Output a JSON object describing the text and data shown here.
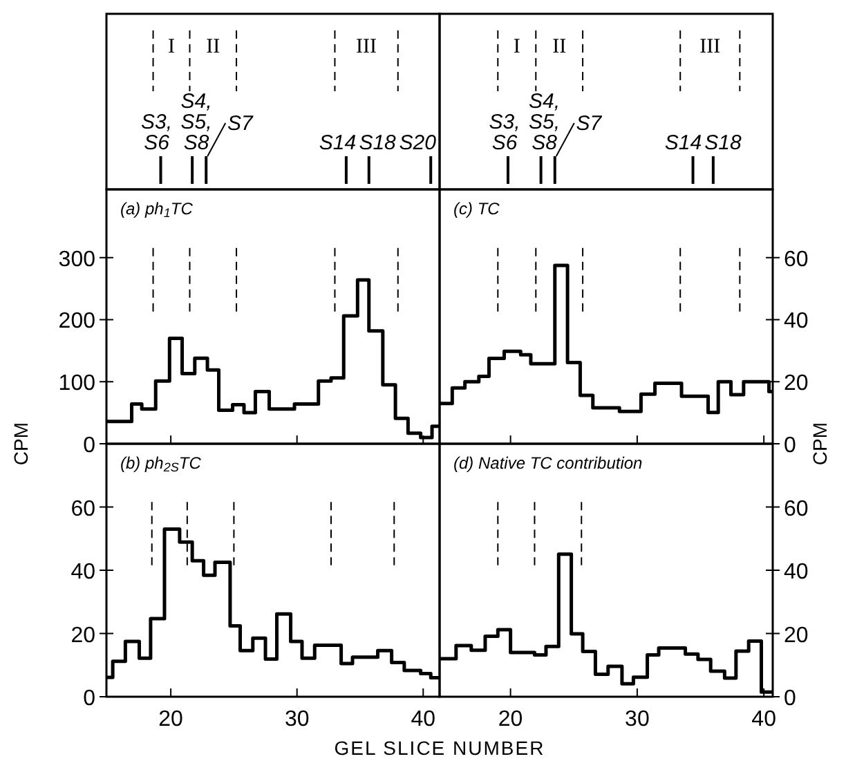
{
  "chart_data": [
    {
      "type": "step",
      "title": "(a) ph$_{1}$TC",
      "xlim": [
        14.9,
        41.3
      ],
      "xticks": [
        20,
        30,
        40
      ],
      "ylim": [
        0,
        410
      ],
      "yticks": [
        0,
        100,
        200,
        300
      ],
      "tick_labels": "y",
      "series": [
        {
          "color": "#000000",
          "x": [
            14.9,
            16.9,
            17.7,
            18.8,
            19.9,
            20.9,
            21.9,
            22.9,
            23.8,
            24.9,
            25.8,
            26.7,
            27.8,
            29.8,
            31.7,
            32.7,
            33.7,
            34.8,
            35.7,
            36.8,
            37.8,
            38.8,
            39.8,
            40.7,
            41.3
          ],
          "values": [
            36,
            64,
            56,
            101,
            170,
            113,
            138,
            119,
            54,
            63,
            50,
            84,
            56,
            64,
            101,
            106,
            206,
            264,
            182,
            95,
            41,
            17,
            10,
            28,
            28
          ]
        }
      ],
      "ref_lines": [
        {
          "axis": "x",
          "value": 18.6,
          "line_style": "dashed"
        },
        {
          "axis": "x",
          "value": 21.5,
          "line_style": "dashed"
        },
        {
          "axis": "x",
          "value": 25.2,
          "line_style": "dashed"
        },
        {
          "axis": "x",
          "value": 33.0,
          "line_style": "dashed"
        },
        {
          "axis": "x",
          "value": 38.0,
          "line_style": "dashed"
        },
        {
          "axis": "x",
          "value": 19.2,
          "label": "S3, S6",
          "line_style": "solid"
        },
        {
          "axis": "x",
          "value": 21.7,
          "label": "S4, S5, S8",
          "line_style": "solid"
        },
        {
          "axis": "x",
          "value": 22.8,
          "label": "S7",
          "line_style": "solid"
        },
        {
          "axis": "x",
          "value": 33.9,
          "label": "S14",
          "line_style": "solid"
        },
        {
          "axis": "x",
          "value": 35.7,
          "label": "S18",
          "line_style": "solid"
        },
        {
          "axis": "x",
          "value": 40.6,
          "label": "S20",
          "line_style": "solid"
        }
      ],
      "annotations": [
        "I",
        "II",
        "III"
      ]
    },
    {
      "type": "step",
      "title": "(c) TC",
      "xlim": [
        14.4,
        40.7
      ],
      "xticks": [
        20,
        30,
        40
      ],
      "y2lim": [
        0,
        82
      ],
      "y2ticks": [
        0,
        20,
        40,
        60
      ],
      "tick_labels": "y",
      "series": [
        {
          "color": "#000000",
          "axis": "y2",
          "x": [
            14.4,
            15.4,
            16.4,
            17.5,
            18.3,
            19.5,
            20.8,
            21.6,
            23.5,
            24.5,
            25.5,
            26.5,
            28.6,
            30.3,
            31.4,
            33.5,
            35.6,
            36.4,
            37.4,
            38.4,
            40.4,
            40.7
          ],
          "values": [
            13,
            18,
            20,
            21.7,
            27.5,
            29.8,
            28.7,
            25.8,
            57.5,
            26.2,
            15.6,
            11.6,
            10.4,
            16,
            19.5,
            15.3,
            10.1,
            20,
            15.8,
            20,
            16.8,
            16.8
          ]
        }
      ],
      "ref_lines": [
        {
          "axis": "x",
          "value": 19.0,
          "line_style": "dashed"
        },
        {
          "axis": "x",
          "value": 22.0,
          "line_style": "dashed"
        },
        {
          "axis": "x",
          "value": 25.7,
          "line_style": "dashed"
        },
        {
          "axis": "x",
          "value": 33.4,
          "line_style": "dashed"
        },
        {
          "axis": "x",
          "value": 38.1,
          "line_style": "dashed"
        },
        {
          "axis": "x",
          "value": 19.8,
          "label": "S3, S6",
          "line_style": "solid"
        },
        {
          "axis": "x",
          "value": 22.4,
          "label": "S4, S5, S8",
          "line_style": "solid"
        },
        {
          "axis": "x",
          "value": 23.5,
          "label": "S7",
          "line_style": "solid"
        },
        {
          "axis": "x",
          "value": 34.4,
          "label": "S14",
          "line_style": "solid"
        },
        {
          "axis": "x",
          "value": 36.0,
          "label": "S18",
          "line_style": "solid"
        }
      ],
      "annotations": [
        "I",
        "II",
        "III"
      ]
    },
    {
      "type": "step",
      "title": "(b) ph$_{2S}$TC",
      "ylabel": "CPM",
      "xlabel": "GEL SLICE NUMBER",
      "xlim": [
        14.9,
        41.3
      ],
      "xticks": [
        20,
        30,
        40
      ],
      "ylim": [
        0,
        80
      ],
      "yticks": [
        0,
        20,
        40,
        60
      ],
      "series": [
        {
          "color": "#000000",
          "x": [
            14.9,
            15.4,
            16.4,
            17.5,
            18.4,
            19.5,
            20.7,
            21.7,
            22.6,
            23.5,
            24.7,
            25.5,
            26.5,
            27.5,
            28.4,
            29.5,
            30.4,
            31.4,
            33.5,
            34.4,
            36.4,
            37.5,
            38.5,
            39.8,
            40.6,
            41.3
          ],
          "values": [
            6.1,
            11.2,
            17.5,
            12.2,
            24.7,
            53,
            48.9,
            43,
            38.4,
            42.5,
            22.4,
            14.6,
            18.5,
            11.9,
            26.2,
            17.5,
            12.2,
            16.3,
            10.5,
            12.5,
            14.6,
            10.8,
            8.3,
            7.3,
            6,
            6
          ]
        }
      ],
      "ref_lines": [
        {
          "axis": "x",
          "value": 18.5,
          "line_style": "dashed"
        },
        {
          "axis": "x",
          "value": 21.3,
          "line_style": "dashed"
        },
        {
          "axis": "x",
          "value": 25.0,
          "line_style": "dashed"
        },
        {
          "axis": "x",
          "value": 32.7,
          "line_style": "dashed"
        },
        {
          "axis": "x",
          "value": 37.7,
          "line_style": "dashed"
        }
      ]
    },
    {
      "type": "step",
      "title": "(d) Native TC contribution",
      "y2label": "CPM",
      "xlim": [
        14.4,
        40.7
      ],
      "xticks": [
        20,
        30,
        40
      ],
      "y2lim": [
        0,
        80
      ],
      "y2ticks": [
        0,
        20,
        40,
        60
      ],
      "series": [
        {
          "color": "#000000",
          "axis": "y2",
          "x": [
            14.4,
            15.7,
            16.9,
            18,
            19,
            20,
            21.9,
            22.8,
            23.8,
            24.8,
            25.7,
            26.7,
            27.7,
            28.8,
            29.7,
            30.8,
            31.7,
            33.8,
            34.8,
            35.8,
            36.9,
            37.8,
            38.8,
            39.8,
            40.7
          ],
          "values": [
            12,
            16.2,
            14.7,
            19.1,
            21.2,
            14,
            13.2,
            15.9,
            45.1,
            19.9,
            14.3,
            7.1,
            9.6,
            4.1,
            6.2,
            13.2,
            15.4,
            13.5,
            11.8,
            8.1,
            5.9,
            14.4,
            17.6,
            1.5,
            1.5
          ]
        }
      ],
      "ref_lines": [
        {
          "axis": "x",
          "value": 19.0,
          "line_style": "dashed"
        },
        {
          "axis": "x",
          "value": 21.9,
          "line_style": "dashed"
        },
        {
          "axis": "x",
          "value": 25.6,
          "line_style": "dashed"
        }
      ]
    }
  ]
}
